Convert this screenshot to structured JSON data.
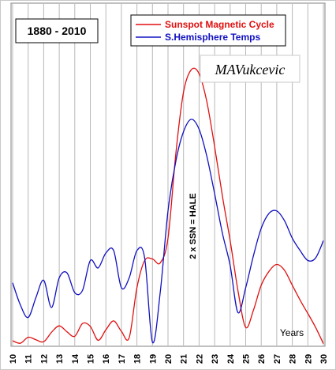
{
  "chart_data": {
    "type": "line",
    "title": "1880 - 2010",
    "watermark": "MAVukcevic",
    "annotation": "2 x SSN = HALE",
    "xlabel": "Years",
    "x_ticks": [
      "10",
      "11",
      "12",
      "13",
      "14",
      "15",
      "16",
      "17",
      "18",
      "19",
      "20",
      "21",
      "22",
      "23",
      "24",
      "25",
      "26",
      "27",
      "28",
      "29",
      "30"
    ],
    "xlim": [
      10,
      30
    ],
    "grid": "vertical",
    "legend_placement": "top-right",
    "series": [
      {
        "name": "Sunspot Magnetic Cycle",
        "color": "#e01010",
        "x": [
          10.0,
          10.5,
          11.0,
          11.5,
          12.0,
          12.5,
          13.0,
          13.5,
          14.0,
          14.5,
          15.0,
          15.5,
          16.0,
          16.5,
          17.0,
          17.5,
          18.0,
          18.5,
          19.0,
          19.5,
          20.0,
          20.5,
          21.0,
          21.5,
          22.0,
          22.5,
          23.0,
          23.5,
          24.0,
          24.5,
          25.0,
          25.5,
          26.0,
          26.5,
          27.0,
          27.5,
          28.0,
          28.5,
          29.0,
          29.5,
          30.0
        ],
        "values": [
          0.8,
          0.3,
          1.5,
          1.0,
          0.6,
          2.5,
          3.8,
          2.6,
          1.7,
          4.3,
          3.7,
          0.9,
          3.0,
          4.8,
          2.7,
          1.4,
          11.5,
          17.0,
          17.3,
          16.5,
          21.5,
          38.5,
          51.0,
          55.5,
          54.7,
          49.0,
          40.0,
          30.0,
          21.0,
          11.0,
          3.5,
          7.0,
          12.0,
          14.8,
          16.2,
          15.0,
          12.0,
          9.0,
          6.3,
          3.5,
          0.2
        ]
      },
      {
        "name": "S.Hemisphere Temps",
        "color": "#1010c0",
        "x": [
          10.0,
          10.5,
          11.0,
          11.5,
          12.0,
          12.5,
          13.0,
          13.5,
          14.0,
          14.5,
          15.0,
          15.5,
          16.0,
          16.5,
          17.0,
          17.5,
          18.0,
          18.5,
          19.0,
          19.5,
          20.0,
          20.5,
          21.0,
          21.5,
          22.0,
          22.5,
          23.0,
          23.5,
          24.0,
          24.5,
          25.0,
          25.5,
          26.0,
          26.5,
          27.0,
          27.5,
          28.0,
          28.5,
          29.0,
          29.5,
          30.0
        ],
        "values": [
          12.5,
          8.0,
          5.5,
          9.5,
          13.0,
          7.5,
          13.5,
          14.5,
          10.5,
          11.0,
          17.0,
          15.5,
          18.5,
          19.0,
          11.5,
          13.5,
          19.0,
          17.5,
          0.5,
          10.5,
          27.0,
          37.0,
          43.0,
          45.5,
          43.5,
          38.0,
          30.5,
          22.5,
          16.0,
          6.5,
          11.5,
          18.0,
          23.5,
          26.5,
          27.0,
          25.0,
          21.5,
          19.0,
          17.0,
          17.5,
          21.0
        ]
      }
    ]
  }
}
